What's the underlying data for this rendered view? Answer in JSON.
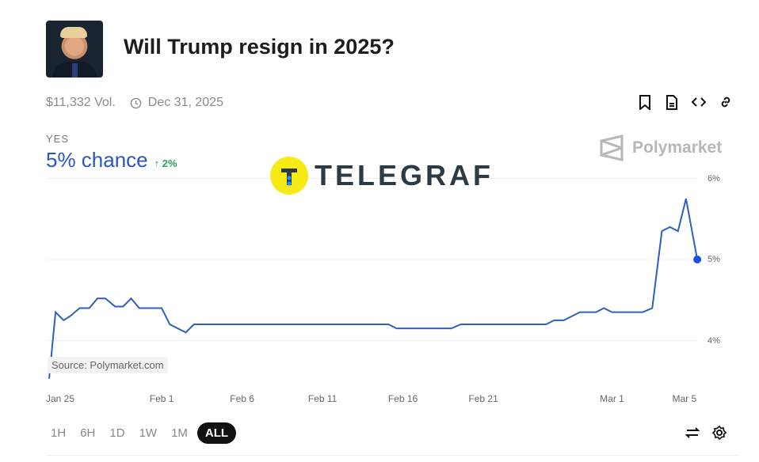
{
  "header": {
    "title": "Will Trump resign in 2025?",
    "volume": "$11,332 Vol.",
    "end_date": "Dec 31, 2025"
  },
  "outcome": {
    "label": "YES",
    "chance": "5% chance",
    "delta": "2%"
  },
  "brand": "Polymarket",
  "watermark": "TELEGRAF",
  "source": "Source: Polymarket.com",
  "ranges": [
    "1H",
    "6H",
    "1D",
    "1W",
    "1M",
    "ALL"
  ],
  "active_range": "ALL",
  "colors": {
    "line": "#2d5fc4",
    "accent": "#2855c8",
    "up": "#27a05a"
  },
  "chart_data": {
    "type": "line",
    "x_unit": "days since Jan 25",
    "x_ticks": [
      {
        "label": "Jan 25",
        "x": 0
      },
      {
        "label": "Feb 1",
        "x": 7
      },
      {
        "label": "Feb 6",
        "x": 12
      },
      {
        "label": "Feb 11",
        "x": 17
      },
      {
        "label": "Feb 16",
        "x": 22
      },
      {
        "label": "Feb 21",
        "x": 27
      },
      {
        "label": "Mar 1",
        "x": 35
      },
      {
        "label": "Mar 5",
        "x": 39.5
      }
    ],
    "y_ticks": [
      {
        "label": "6%",
        "y": 6
      },
      {
        "label": "5%",
        "y": 5
      },
      {
        "label": "4%",
        "y": 4
      }
    ],
    "ylim": [
      3.5,
      6
    ],
    "series": [
      {
        "name": "Yes",
        "x": [
          0,
          0.4,
          0.9,
          1.3,
          1.9,
          2.5,
          3.0,
          3.5,
          4.1,
          4.6,
          5.1,
          5.6,
          7.0,
          7.5,
          8.5,
          9.0,
          21.1,
          21.6,
          25.0,
          25.6,
          30.9,
          31.4,
          32.0,
          33.0,
          34.0,
          34.5,
          35.0,
          36.9,
          37.5,
          38.1,
          38.6,
          39.1,
          39.6,
          40.3
        ],
        "y": [
          3.53,
          4.35,
          4.25,
          4.3,
          4.4,
          4.4,
          4.52,
          4.52,
          4.42,
          4.42,
          4.52,
          4.4,
          4.4,
          4.2,
          4.1,
          4.2,
          4.2,
          4.15,
          4.15,
          4.2,
          4.2,
          4.25,
          4.25,
          4.35,
          4.35,
          4.4,
          4.35,
          4.35,
          4.4,
          5.35,
          5.4,
          5.35,
          5.75,
          5.0
        ]
      }
    ]
  }
}
